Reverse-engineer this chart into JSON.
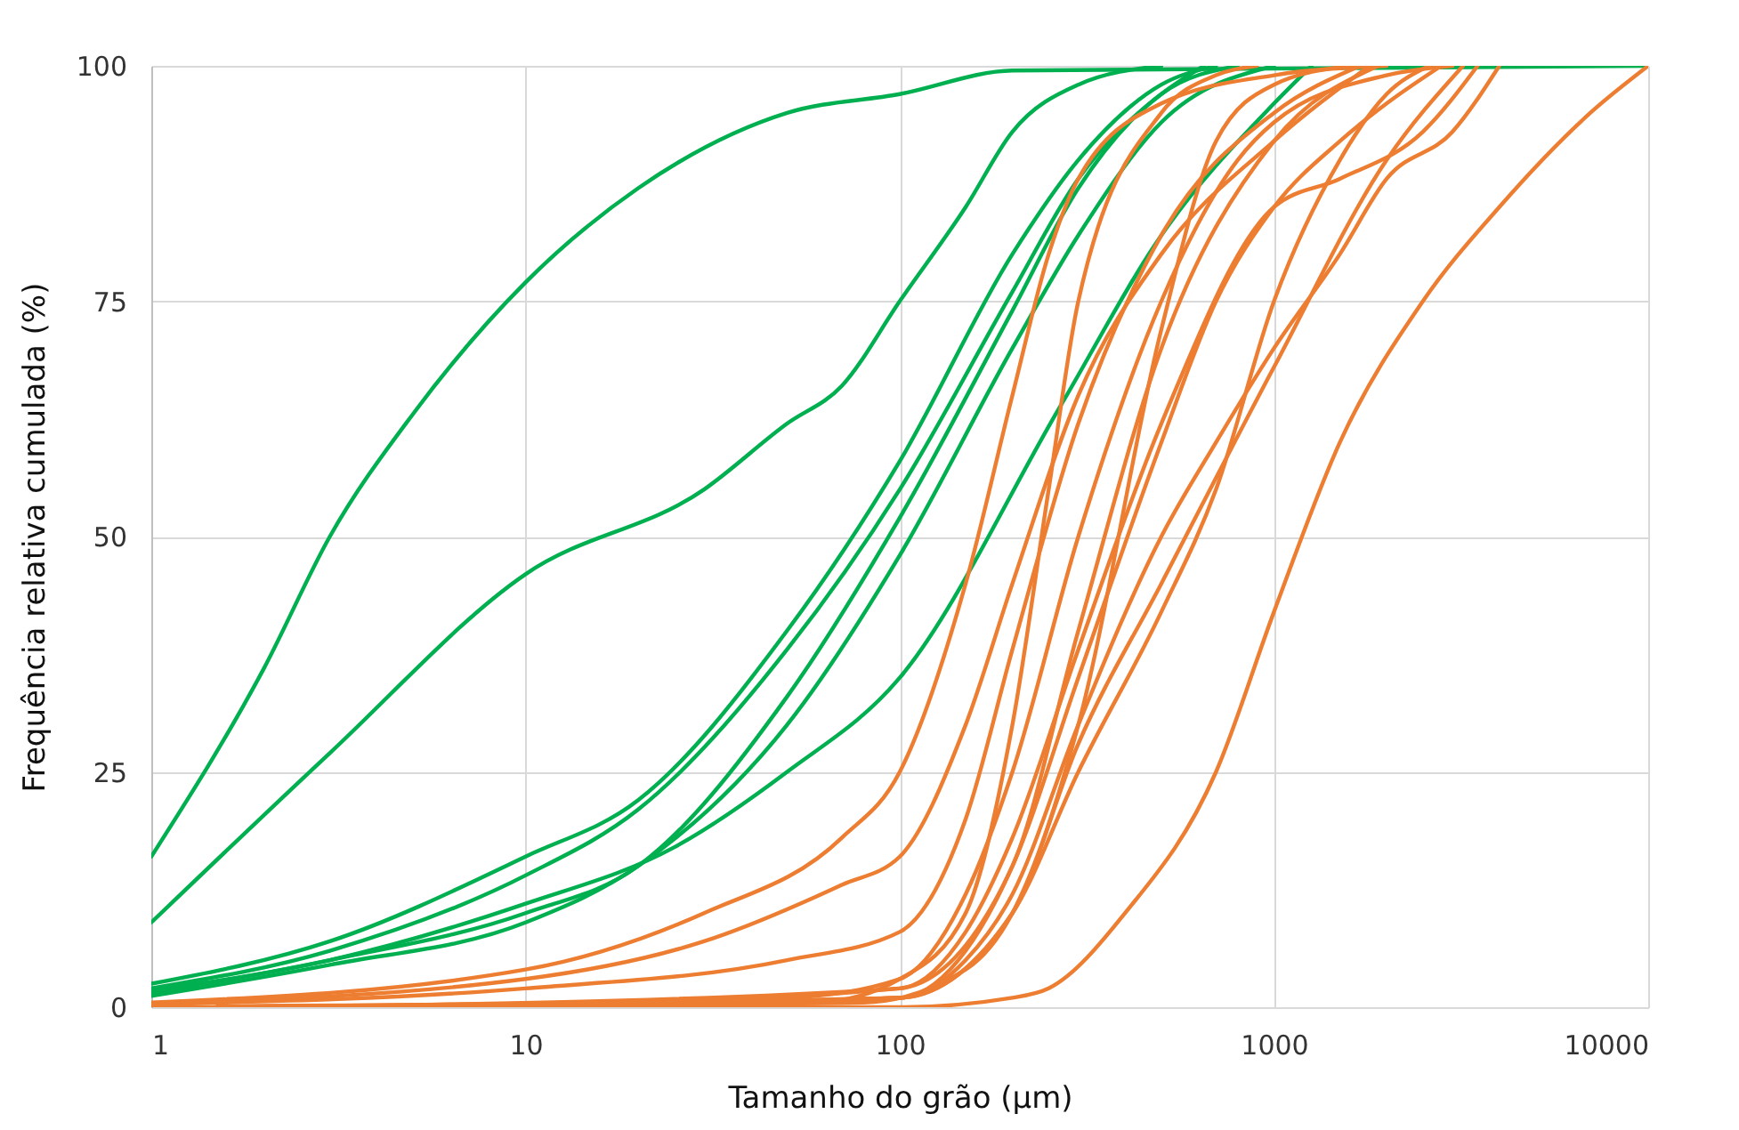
{
  "chart_data": {
    "type": "line",
    "xlabel": "Tamanho do grão (µm)",
    "ylabel": "Frequência relativa cumulada  (%)",
    "log": "x",
    "grid": true,
    "xlim": [
      1,
      10000
    ],
    "xticks": [
      1,
      10,
      100,
      1000,
      10000
    ],
    "ylim": [
      0,
      100
    ],
    "yticks": [
      0,
      25,
      50,
      75,
      100
    ],
    "series": [
      {
        "color": "#00b050",
        "x": [
          1,
          2,
          3,
          5,
          10,
          20,
          50,
          100,
          200,
          10000
        ],
        "values": [
          16,
          36,
          50,
          63,
          77,
          87,
          95,
          97,
          99.5,
          100
        ]
      },
      {
        "color": "#00b050",
        "x": [
          1,
          3,
          10,
          30,
          50,
          70,
          100,
          150,
          200,
          300,
          500
        ],
        "values": [
          9,
          27,
          46,
          55,
          62,
          66,
          75,
          85,
          93,
          98,
          100
        ]
      },
      {
        "color": "#00b050",
        "x": [
          1,
          3,
          10,
          20,
          50,
          100,
          200,
          300,
          500,
          700
        ],
        "values": [
          2.5,
          7,
          16,
          22,
          40,
          58,
          80,
          90,
          98,
          100
        ]
      },
      {
        "color": "#00b050",
        "x": [
          1,
          3,
          10,
          20,
          50,
          100,
          200,
          300,
          500,
          650
        ],
        "values": [
          2,
          6,
          14,
          21,
          38,
          55,
          76,
          88,
          97,
          100
        ]
      },
      {
        "color": "#00b050",
        "x": [
          1,
          3,
          10,
          20,
          50,
          100,
          200,
          300,
          500,
          800
        ],
        "values": [
          1.5,
          5,
          10,
          15,
          33,
          52,
          74,
          87,
          97,
          100
        ]
      },
      {
        "color": "#00b050",
        "x": [
          1,
          3,
          10,
          20,
          50,
          100,
          200,
          300,
          500,
          1000
        ],
        "values": [
          1.2,
          4.5,
          9,
          15,
          30,
          48,
          70,
          82,
          94,
          100
        ]
      },
      {
        "color": "#00b050",
        "x": [
          1,
          3,
          10,
          25,
          50,
          100,
          270,
          500,
          1000,
          1260
        ],
        "values": [
          1.8,
          5,
          11,
          17,
          25,
          35,
          64,
          82,
          96,
          100
        ]
      },
      {
        "color": "#ed7d31",
        "x": [
          1,
          100,
          200,
          250,
          400,
          700,
          1000,
          1500,
          2500,
          4000,
          7000,
          10000
        ],
        "values": [
          0,
          0,
          1,
          2,
          10,
          25,
          42,
          60,
          75,
          85,
          95,
          100
        ]
      },
      {
        "color": "#ed7d31",
        "x": [
          1,
          10,
          30,
          70,
          100,
          150,
          200,
          250,
          300,
          500,
          1000,
          2000
        ],
        "values": [
          0.5,
          4,
          10,
          18,
          25,
          45,
          65,
          80,
          88,
          96,
          99,
          100
        ]
      },
      {
        "color": "#ed7d31",
        "x": [
          1,
          10,
          30,
          70,
          100,
          150,
          200,
          300,
          500,
          1000,
          1800
        ],
        "values": [
          0.4,
          3,
          7,
          13,
          16,
          30,
          45,
          65,
          80,
          92,
          100
        ]
      },
      {
        "color": "#ed7d31",
        "x": [
          1,
          10,
          50,
          100,
          150,
          200,
          300,
          500,
          1000,
          1700
        ],
        "values": [
          0.3,
          2,
          5,
          8,
          20,
          38,
          62,
          82,
          95,
          100
        ]
      },
      {
        "color": "#ed7d31",
        "x": [
          2,
          50,
          100,
          150,
          200,
          300,
          500,
          800,
          1000,
          2000,
          3000
        ],
        "values": [
          0.1,
          1,
          3,
          12,
          25,
          50,
          75,
          90,
          94,
          99,
          100
        ]
      },
      {
        "color": "#ed7d31",
        "x": [
          3,
          100,
          150,
          200,
          300,
          500,
          1000,
          1500,
          2500,
          3500
        ],
        "values": [
          0.1,
          2,
          8,
          18,
          38,
          62,
          85,
          88,
          93,
          100
        ]
      },
      {
        "color": "#ed7d31",
        "x": [
          4,
          100,
          150,
          200,
          300,
          500,
          700,
          1000,
          1500,
          2000,
          2800
        ],
        "values": [
          0.1,
          1,
          6,
          15,
          35,
          60,
          75,
          85,
          92,
          96,
          100
        ]
      },
      {
        "color": "#ed7d31",
        "x": [
          5,
          100,
          150,
          200,
          300,
          500,
          700,
          1000,
          1500,
          2000,
          3000,
          4000
        ],
        "values": [
          0.1,
          1,
          5,
          12,
          30,
          50,
          60,
          70,
          80,
          88,
          93,
          100
        ]
      },
      {
        "color": "#ed7d31",
        "x": [
          6,
          100,
          200,
          300,
          500,
          1000,
          2000,
          3200
        ],
        "values": [
          0.1,
          1,
          10,
          28,
          45,
          68,
          90,
          100
        ]
      },
      {
        "color": "#ed7d31",
        "x": [
          7,
          80,
          150,
          200,
          300,
          500,
          700,
          1000,
          1600
        ],
        "values": [
          0.1,
          0.5,
          4,
          10,
          30,
          72,
          92,
          98,
          100
        ]
      },
      {
        "color": "#ed7d31",
        "x": [
          8,
          60,
          100,
          150,
          200,
          250,
          300,
          500,
          700,
          900
        ],
        "values": [
          0.1,
          0.5,
          3,
          10,
          30,
          55,
          75,
          95,
          99,
          100
        ]
      },
      {
        "color": "#ed7d31",
        "x": [
          9,
          100,
          200,
          300,
          500,
          1000,
          1900
        ],
        "values": [
          0.1,
          2,
          15,
          40,
          70,
          92,
          100
        ]
      },
      {
        "color": "#ed7d31",
        "x": [
          1.5,
          100,
          200,
          300,
          500,
          700,
          1000,
          1500,
          2000,
          2600
        ],
        "values": [
          0.1,
          1,
          10,
          25,
          42,
          55,
          75,
          90,
          97,
          100
        ]
      }
    ]
  }
}
